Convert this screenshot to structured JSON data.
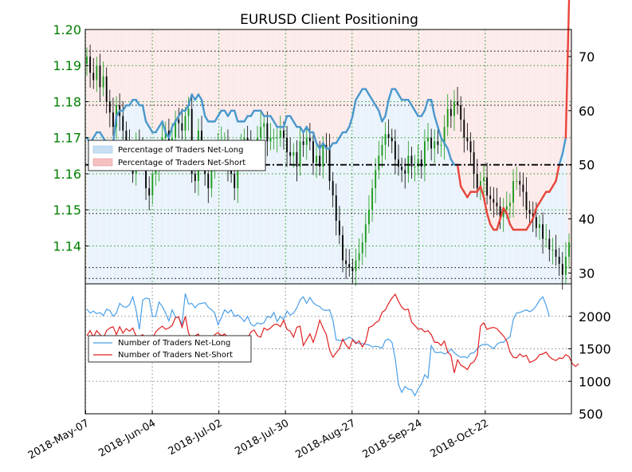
{
  "chart_data": [
    {
      "type": "candlestick+line",
      "title": "EURUSD Client Positioning",
      "x_ticks": [
        "2018-May-07",
        "2018-Jun-04",
        "2018-Jul-02",
        "2018-Jul-30",
        "2018-Aug-27",
        "2018-Sep-24",
        "2018-Oct-22"
      ],
      "left_axis": {
        "ticks": [
          "1.20",
          "1.19",
          "1.18",
          "1.17",
          "1.16",
          "1.15",
          "1.14"
        ],
        "ylim": [
          1.1295,
          1.2
        ],
        "color": "#008000"
      },
      "right_axis": {
        "ticks": [
          "70",
          "60",
          "50",
          "40",
          "30"
        ],
        "ylim": [
          28,
          75
        ]
      },
      "reference_line": 50,
      "legend": {
        "position": "upper-left",
        "entries": [
          {
            "label": "Percentage of Traders Net-Long",
            "color": "#c8e0f4"
          },
          {
            "label": "Percentage of Traders Net-Short",
            "color": "#f4c0c0"
          }
        ]
      },
      "colors": {
        "net_long_line": "#4a98cc",
        "net_short_line": "#e8443a",
        "up_candle": "#1a9a1a",
        "down_candle": "#000000"
      },
      "price_close": [
        1.1925,
        1.188,
        1.186,
        1.19,
        1.184,
        1.187,
        1.18,
        1.177,
        1.173,
        1.179,
        1.176,
        1.172,
        1.169,
        1.165,
        1.16,
        1.169,
        1.166,
        1.164,
        1.156,
        1.154,
        1.16,
        1.162,
        1.166,
        1.17,
        1.172,
        1.169,
        1.17,
        1.175,
        1.174,
        1.172,
        1.176,
        1.178,
        1.16,
        1.158,
        1.172,
        1.164,
        1.16,
        1.156,
        1.162,
        1.166,
        1.168,
        1.169,
        1.169,
        1.162,
        1.16,
        1.156,
        1.164,
        1.167,
        1.17,
        1.168,
        1.165,
        1.166,
        1.17,
        1.173,
        1.174,
        1.169,
        1.17,
        1.17,
        1.17,
        1.172,
        1.17,
        1.166,
        1.165,
        1.166,
        1.162,
        1.169,
        1.168,
        1.17,
        1.169,
        1.163,
        1.165,
        1.162,
        1.168,
        1.167,
        1.158,
        1.154,
        1.147,
        1.143,
        1.136,
        1.135,
        1.134,
        1.133,
        1.136,
        1.138,
        1.141,
        1.146,
        1.15,
        1.156,
        1.161,
        1.165,
        1.168,
        1.171,
        1.17,
        1.169,
        1.164,
        1.162,
        1.161,
        1.16,
        1.165,
        1.162,
        1.162,
        1.164,
        1.162,
        1.169,
        1.17,
        1.167,
        1.169,
        1.168,
        1.168,
        1.173,
        1.178,
        1.176,
        1.18,
        1.179,
        1.175,
        1.17,
        1.169,
        1.166,
        1.16,
        1.156,
        1.158,
        1.159,
        1.154,
        1.153,
        1.152,
        1.151,
        1.148,
        1.15,
        1.151,
        1.152,
        1.158,
        1.158,
        1.157,
        1.155,
        1.15,
        1.149,
        1.148,
        1.145,
        1.146,
        1.142,
        1.142,
        1.139,
        1.139,
        1.137,
        1.135,
        1.132,
        1.137,
        1.141
      ],
      "net_long_pct": [
        55,
        54,
        55,
        56,
        56,
        55,
        54,
        54,
        54,
        59,
        60,
        60,
        61,
        61,
        62,
        62,
        61,
        61,
        58,
        57,
        56,
        56,
        57,
        58,
        56,
        55,
        57,
        58,
        59,
        60,
        60,
        61,
        63,
        62,
        63,
        62,
        59,
        58,
        58,
        58,
        59,
        60,
        60,
        59,
        60,
        60,
        58,
        58,
        58,
        59,
        59,
        60,
        60,
        60,
        59,
        59,
        59,
        58,
        57,
        57,
        57,
        59,
        59,
        58,
        57,
        57,
        56,
        57,
        56,
        56,
        54,
        53,
        54,
        53,
        53,
        54,
        54,
        55,
        56,
        56,
        57,
        59,
        62,
        63,
        64,
        64,
        63,
        62,
        61,
        60,
        58,
        59,
        62,
        64,
        64,
        63,
        62,
        62,
        62,
        61,
        60,
        59,
        59,
        60,
        62,
        62,
        59,
        57,
        55,
        54,
        53,
        51,
        50,
        50,
        46,
        45,
        44,
        45,
        45,
        45,
        46,
        44,
        41,
        39,
        38,
        38,
        40,
        42,
        41,
        39,
        38,
        38,
        38,
        38,
        38,
        39,
        40,
        42,
        43,
        44,
        45,
        45,
        46,
        47,
        50,
        52,
        55
      ],
      "series_count": [
        {
          "name": "Number of Traders Net-Long",
          "color": "#4a9fe8",
          "values": [
            2110,
            2050,
            2080,
            2040,
            2060,
            2010,
            2110,
            2090,
            2000,
            2050,
            2200,
            2150,
            2140,
            2180,
            2300,
            2100,
            1800,
            2250,
            2280,
            2270,
            2000,
            2000,
            2220,
            2150,
            2050,
            1930,
            2100,
            1990,
            1980,
            1880,
            2350,
            2190,
            2200,
            2130,
            2190,
            2200,
            2210,
            2140,
            2100,
            2050,
            1870,
            1980,
            2100,
            2050,
            2100,
            2000,
            2020,
            1980,
            1920,
            2000,
            1880,
            1850,
            1900,
            1880,
            1900,
            2000,
            1980,
            2060,
            1920,
            2000,
            1950,
            2080,
            2020,
            2050,
            2130,
            2250,
            2300,
            2200,
            2290,
            2210,
            2170,
            2150,
            2100,
            2090,
            2100,
            1940,
            1640,
            1630,
            1620,
            1650,
            1680,
            1650,
            1600,
            1580,
            1580,
            1570,
            1560,
            1530,
            1540,
            1530,
            1510,
            1630,
            1650,
            1600,
            1350,
            950,
            830,
            920,
            880,
            870,
            780,
            880,
            960,
            1100,
            1050,
            1550,
            1450,
            1440,
            1450,
            1420,
            1440,
            1500,
            1440,
            1400,
            1370,
            1380,
            1360,
            1430,
            1440,
            1500,
            1550,
            1570,
            1570,
            1540,
            1500,
            1570,
            1600,
            1600,
            1650,
            1680,
            1950,
            2050,
            2060,
            2080,
            2100,
            2070,
            2100,
            2160,
            2250,
            2300,
            2170,
            2000
          ]
        },
        {
          "name": "Number of Traders Net-Short",
          "color": "#e02020",
          "values": [
            1700,
            1780,
            1680,
            1780,
            1720,
            1660,
            1780,
            1820,
            1840,
            1720,
            1840,
            1740,
            1810,
            1770,
            1820,
            1700,
            1680,
            1720,
            1650,
            1670,
            1650,
            1760,
            1810,
            1850,
            1800,
            1820,
            1860,
            1980,
            1990,
            1830,
            2000,
            1740,
            1640,
            1700,
            1730,
            1570,
            1600,
            1540,
            1600,
            1720,
            1750,
            1700,
            1730,
            1670,
            1650,
            1580,
            1680,
            1700,
            1680,
            1660,
            1760,
            1790,
            1700,
            1680,
            1820,
            1790,
            1820,
            1870,
            1880,
            1840,
            1940,
            1800,
            1770,
            1680,
            1830,
            1850,
            1550,
            1640,
            1730,
            1600,
            1750,
            1940,
            1820,
            1720,
            1480,
            1370,
            1440,
            1500,
            1650,
            1560,
            1500,
            1640,
            1580,
            1620,
            1530,
            1610,
            1830,
            1850,
            1900,
            1930,
            2060,
            2100,
            2200,
            2280,
            2340,
            2230,
            2140,
            2100,
            2110,
            1910,
            1860,
            1800,
            1810,
            1760,
            1780,
            1720,
            1600,
            1600,
            1550,
            1620,
            1450,
            1400,
            1130,
            1330,
            1250,
            1220,
            1180,
            1270,
            1300,
            1400,
            1850,
            1900,
            1800,
            1820,
            1830,
            1810,
            1750,
            1700,
            1620,
            1450,
            1370,
            1360,
            1420,
            1380,
            1400,
            1290,
            1310,
            1340,
            1410,
            1420,
            1450,
            1380,
            1340,
            1320,
            1360,
            1350,
            1410,
            1380,
            1270,
            1230,
            1270
          ]
        }
      ],
      "lower_legend": {
        "position": "center-left"
      },
      "lower_axis": {
        "ticks": [
          "2000",
          "1500",
          "1000",
          "500"
        ],
        "ylim": [
          500,
          2500
        ]
      }
    }
  ]
}
